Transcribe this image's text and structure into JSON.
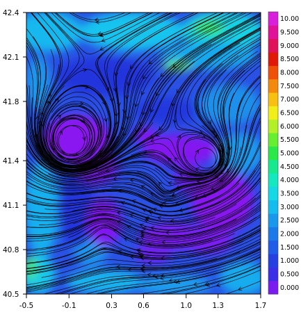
{
  "chart_data": {
    "type": "heatmap",
    "title": "",
    "xlabel": "",
    "ylabel": "",
    "xlim": [
      -0.5,
      1.7
    ],
    "ylim": [
      40.5,
      42.4
    ],
    "x_ticks": [
      "-0.5",
      "-0.1",
      "0.3",
      "0.6",
      "1.0",
      "1.3",
      "1.7"
    ],
    "x_tick_values": [
      -0.5,
      -0.1,
      0.3,
      0.6,
      1.0,
      1.3,
      1.7
    ],
    "y_ticks": [
      "40.5",
      "40.8",
      "41.1",
      "41.4",
      "41.8",
      "42.1",
      "42.4"
    ],
    "y_tick_values": [
      40.5,
      40.8,
      41.1,
      41.4,
      41.8,
      42.1,
      42.4
    ],
    "overlay": "streamlines",
    "grid": false,
    "legend": "colorbar-right",
    "colorbar": {
      "labels": [
        "0.000",
        "0.500",
        "1.000",
        "1.500",
        "2.000",
        "2.500",
        "3.000",
        "3.500",
        "4.000",
        "4.500",
        "5.000",
        "5.500",
        "6.000",
        "6.500",
        "7.000",
        "7.500",
        "8.000",
        "8.500",
        "9.000",
        "9.500",
        "10.00"
      ],
      "colors": [
        "#7a1cf0",
        "#3a2ee6",
        "#2440e0",
        "#1f5ce8",
        "#1c7ae8",
        "#1a98ec",
        "#16bcee",
        "#14d8e6",
        "#14e8c0",
        "#18e88e",
        "#2ae84a",
        "#66ee30",
        "#b4f028",
        "#f2ee1a",
        "#f8c010",
        "#f48a0c",
        "#ee5008",
        "#e01808",
        "#e0105a",
        "#e01098",
        "#d820dc"
      ]
    }
  }
}
